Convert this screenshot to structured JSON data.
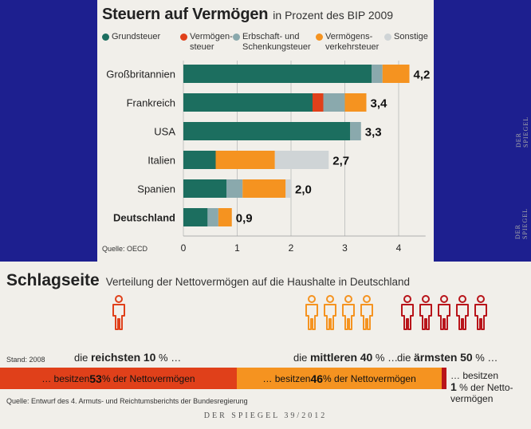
{
  "top": {
    "title": "Steuern auf Vermögen",
    "subtitle": "in Prozent des BIP 2009",
    "source": "Quelle: OECD",
    "side_label": "DER SPIEGEL"
  },
  "colors": {
    "Grundsteuer": "#1c6e5f",
    "Vermögensteuer": "#e0401a",
    "Erbschaft": "#8aa9ad",
    "Verkehr": "#f59320",
    "Sonstige": "#cfd4d6"
  },
  "legend": [
    {
      "key": "Grundsteuer",
      "lines": [
        "Grundsteuer"
      ]
    },
    {
      "key": "Vermögensteuer",
      "lines": [
        "Vermögen-",
        "steuer"
      ]
    },
    {
      "key": "Erbschaft",
      "lines": [
        "Erbschaft- und",
        "Schenkungsteuer"
      ]
    },
    {
      "key": "Verkehr",
      "lines": [
        "Vermögens-",
        "verkehrsteuer"
      ]
    },
    {
      "key": "Sonstige",
      "lines": [
        "Sonstige"
      ]
    }
  ],
  "chart_data": [
    {
      "type": "bar",
      "orientation": "horizontal",
      "stacked": true,
      "title": "Steuern auf Vermögen",
      "subtitle": "in Prozent des BIP 2009",
      "categories": [
        "Großbritannien",
        "Frankreich",
        "USA",
        "Italien",
        "Spanien",
        "Deutschland"
      ],
      "series": [
        {
          "name": "Grundsteuer",
          "values": [
            3.5,
            2.4,
            3.1,
            0.6,
            0.8,
            0.45
          ]
        },
        {
          "name": "Vermögensteuer",
          "values": [
            0,
            0.2,
            0,
            0,
            0,
            0
          ]
        },
        {
          "name": "Erbschaft- und Schenkungsteuer",
          "values": [
            0.2,
            0.4,
            0.2,
            0,
            0.3,
            0.2
          ]
        },
        {
          "name": "Vermögensverkehrsteuer",
          "values": [
            0.5,
            0.4,
            0,
            1.1,
            0.8,
            0.25
          ]
        },
        {
          "name": "Sonstige",
          "values": [
            0,
            0,
            0,
            1.0,
            0.1,
            0
          ]
        }
      ],
      "totals": [
        "4,2",
        "3,4",
        "3,3",
        "2,7",
        "2,0",
        "0,9"
      ],
      "xlim": [
        0,
        4.5
      ],
      "xticks": [
        0,
        1,
        2,
        3,
        4
      ],
      "bold_categories": [
        "Deutschland"
      ],
      "grid": true,
      "legend": "top"
    },
    {
      "type": "bar",
      "orientation": "horizontal",
      "stacked": true,
      "title": "Schlagseite",
      "subtitle": "Verteilung der Nettovermögen auf die Haushalte in Deutschland",
      "series": [
        {
          "name": "die reichsten 10 %",
          "value": 53
        },
        {
          "name": "die mittleren 40 %",
          "value": 46
        },
        {
          "name": "die ärmsten 50 %",
          "value": 1
        }
      ]
    }
  ],
  "bottom": {
    "title": "Schlagseite",
    "subtitle": "Verteilung der Nettovermögen auf die Haushalte in Deutschland",
    "stand": "Stand: 2008",
    "groups": [
      {
        "pre": "die ",
        "strong": "reichsten",
        "pct": "10",
        "post": " % …",
        "count": 1,
        "color": "#e0401a"
      },
      {
        "pre": "die ",
        "strong": "mittleren",
        "pct": "40",
        "post": " % …",
        "count": 4,
        "color": "#f59320"
      },
      {
        "pre": "die ",
        "strong": "ärmsten",
        "pct": "50",
        "post": " % …",
        "count": 5,
        "color": "#b8141a"
      }
    ],
    "segments": [
      {
        "pre": "… besitzen ",
        "pct": "53",
        "post": " % der Nettovermögen",
        "share": 53,
        "color": "#e0401a"
      },
      {
        "pre": "… besitzen ",
        "pct": "46",
        "post": " % der Nettovermögen",
        "share": 46,
        "color": "#f59320"
      },
      {
        "pre": "",
        "pct": "",
        "post": "",
        "share": 1,
        "color": "#b8141a"
      }
    ],
    "note_l1": "… besitzen",
    "note_pct": "1",
    "note_l2": " % der Netto-",
    "note_l3": "vermögen",
    "source": "Quelle: Entwurf des 4. Armuts- und Reichtumsberichts der Bundesregierung",
    "side_label": "DER SPIEGEL",
    "footer": "DER SPIEGEL 39/2012"
  }
}
